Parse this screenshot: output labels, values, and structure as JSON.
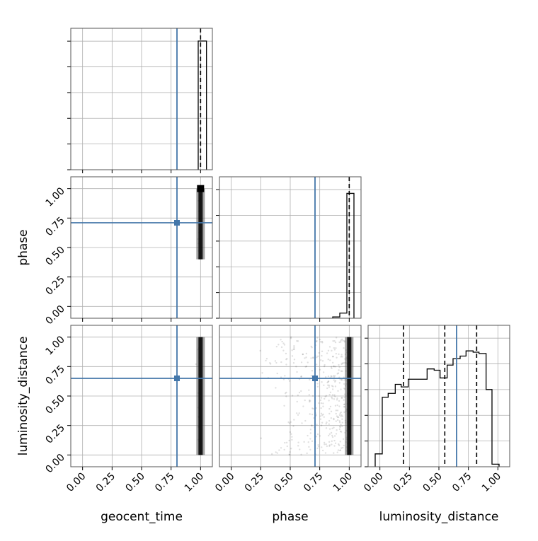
{
  "chart_data": {
    "type": "corner",
    "parameters": [
      "geocent_time",
      "phase",
      "luminosity_distance"
    ],
    "axis_labels": {
      "x": [
        "geocent_time",
        "phase",
        "luminosity_distance"
      ],
      "y": [
        "",
        "phase",
        "luminosity_distance"
      ]
    },
    "tick_values": [
      0.0,
      0.25,
      0.5,
      0.75,
      1.0
    ],
    "tick_labels": [
      "0.00",
      "0.25",
      "0.50",
      "0.75",
      "1.00"
    ],
    "axis_range": [
      -0.1,
      1.1
    ],
    "grid": true,
    "colors": {
      "truth": "#4477aa",
      "histogram": "#000000",
      "samples": "#000000",
      "grid": "#b0b0b0"
    },
    "truths": {
      "geocent_time": 0.8,
      "phase": 0.71,
      "luminosity_distance": 0.65
    },
    "histograms": {
      "geocent_time": {
        "bins": [
          [
            0.98,
            1.05,
            1.0
          ]
        ],
        "quantiles": [
          1.0
        ]
      },
      "phase": {
        "bins": [
          [
            0.86,
            0.92,
            0.01
          ],
          [
            0.92,
            0.98,
            0.04
          ],
          [
            0.98,
            1.04,
            0.97
          ]
        ],
        "quantiles": [
          1.0
        ]
      },
      "luminosity_distance": {
        "bins": [
          [
            -0.04,
            0.02,
            0.1
          ],
          [
            0.02,
            0.07,
            0.54
          ],
          [
            0.07,
            0.13,
            0.57
          ],
          [
            0.13,
            0.18,
            0.64
          ],
          [
            0.18,
            0.24,
            0.62
          ],
          [
            0.24,
            0.29,
            0.68
          ],
          [
            0.29,
            0.35,
            0.68
          ],
          [
            0.35,
            0.4,
            0.68
          ],
          [
            0.4,
            0.46,
            0.76
          ],
          [
            0.46,
            0.51,
            0.75
          ],
          [
            0.51,
            0.57,
            0.69
          ],
          [
            0.57,
            0.62,
            0.79
          ],
          [
            0.62,
            0.68,
            0.84
          ],
          [
            0.68,
            0.73,
            0.86
          ],
          [
            0.73,
            0.79,
            0.9
          ],
          [
            0.79,
            0.84,
            0.89
          ],
          [
            0.84,
            0.9,
            0.88
          ],
          [
            0.9,
            0.95,
            0.6
          ],
          [
            0.95,
            1.01,
            0.02
          ]
        ],
        "quantiles": [
          0.2,
          0.55,
          0.82
        ]
      }
    },
    "scatter": {
      "phase_vs_geocent_time": {
        "cluster_x": 1.0,
        "cluster_y_range": [
          0.4,
          1.0
        ],
        "peak_y": 1.0
      },
      "luminosity_distance_vs_geocent_time": {
        "cluster_x": 1.0,
        "cluster_y_range": [
          0.0,
          1.0
        ]
      },
      "luminosity_distance_vs_phase": {
        "cluster_x": 1.0,
        "cluster_y_range": [
          0.0,
          1.0
        ],
        "spread_x_range": [
          0.2,
          1.0
        ]
      }
    }
  }
}
